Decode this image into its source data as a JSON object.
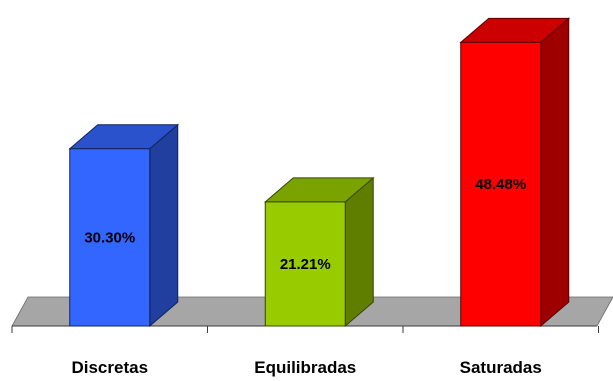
{
  "chart_data": {
    "type": "bar",
    "style": "3d",
    "categories": [
      "Discretas",
      "Equilibradas",
      "Saturadas"
    ],
    "values": [
      30.3,
      21.21,
      48.48
    ],
    "data_labels": [
      "30.30%",
      "21.21%",
      "48.48%"
    ],
    "colors": [
      "#3366ff",
      "#99cc00",
      "#ff0000"
    ],
    "ylim": [
      0,
      50
    ],
    "grid": false,
    "legend": "none"
  }
}
